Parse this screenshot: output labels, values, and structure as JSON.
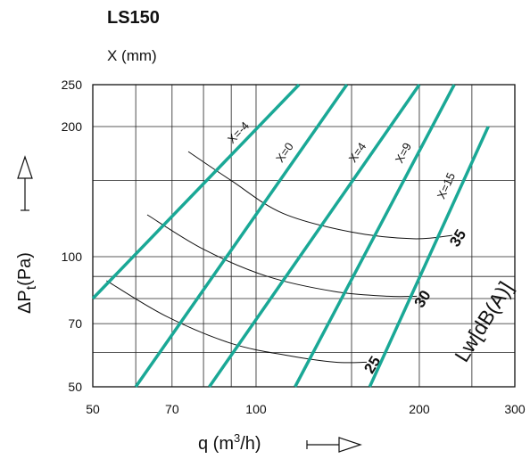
{
  "chart_data": {
    "type": "line",
    "title": "LS150",
    "subtitle": "X (mm)",
    "xlabel": "q (m3/h)",
    "ylabel": "ΔPt(Pa)",
    "x_scale": "log",
    "y_scale": "log",
    "xlim": [
      50,
      300
    ],
    "ylim": [
      50,
      250
    ],
    "x_ticks": [
      50,
      70,
      100,
      200,
      300
    ],
    "y_ticks": [
      50,
      70,
      100,
      200,
      250
    ],
    "grid": true,
    "noise_axis_label": "Lw[dB(A)]",
    "series": [
      {
        "name": "X=-4",
        "color": "#1aa896",
        "x": [
          50,
          120
        ],
        "y": [
          80,
          250
        ]
      },
      {
        "name": "X=0",
        "color": "#1aa896",
        "x": [
          60,
          147
        ],
        "y": [
          50,
          250
        ]
      },
      {
        "name": "X=4",
        "color": "#1aa896",
        "x": [
          82,
          200
        ],
        "y": [
          50,
          250
        ]
      },
      {
        "name": "X=9",
        "color": "#1aa896",
        "x": [
          118,
          232
        ],
        "y": [
          50,
          250
        ]
      },
      {
        "name": "X=15",
        "color": "#1aa896",
        "x": [
          162,
          268
        ],
        "y": [
          50,
          200
        ]
      }
    ],
    "noise_curves": [
      {
        "name": "35",
        "x": [
          75,
          90,
          112,
          150,
          195,
          230
        ],
        "y": [
          175,
          150,
          126,
          114,
          110,
          112
        ]
      },
      {
        "name": "30",
        "x": [
          63,
          80,
          105,
          140,
          175,
          198
        ],
        "y": [
          125,
          104,
          90,
          83,
          81,
          81
        ]
      },
      {
        "name": "25",
        "x": [
          53,
          68,
          90,
          115,
          140,
          160
        ],
        "y": [
          88,
          73,
          63,
          59,
          57,
          57
        ]
      }
    ]
  }
}
